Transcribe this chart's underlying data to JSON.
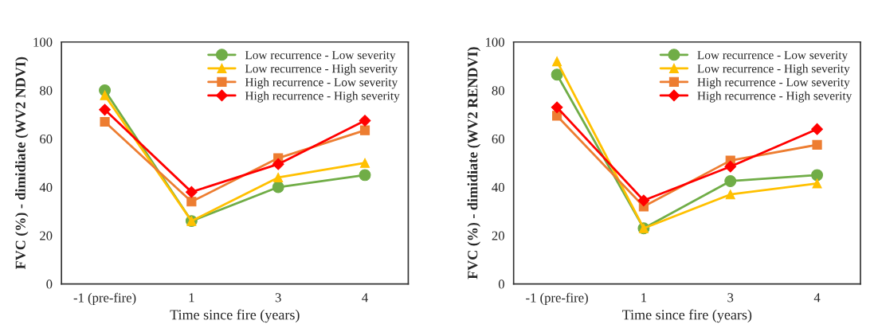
{
  "chart_data": [
    {
      "type": "line",
      "xlabel": "Time since fire (years)",
      "ylabel": "FVC (%) - dimidiate (WV2 NDVI)",
      "categories": [
        "-1 (pre-fire)",
        "1",
        "3",
        "4"
      ],
      "ylim": [
        0,
        100
      ],
      "yticks": [
        0,
        20,
        40,
        60,
        80,
        100
      ],
      "grid": false,
      "legend": "top right",
      "series": [
        {
          "name": "Low recurrence - Low severity",
          "color": "#70ad47",
          "marker": "circle",
          "values": [
            80,
            26,
            40,
            45
          ]
        },
        {
          "name": "Low recurrence - High severity",
          "color": "#ffc000",
          "marker": "triangle",
          "values": [
            78,
            26,
            44,
            50
          ]
        },
        {
          "name": "High recurrence - Low severity",
          "color": "#ed7d31",
          "marker": "square",
          "values": [
            67,
            34,
            52,
            63.5
          ]
        },
        {
          "name": "High recurrence - High severity",
          "color": "#ff0000",
          "marker": "diamond",
          "values": [
            72,
            38,
            49.5,
            67.5
          ]
        }
      ]
    },
    {
      "type": "line",
      "xlabel": "Time since fire (years)",
      "ylabel": "FVC (%) - dimidiate (WV2 RENDVI)",
      "categories": [
        "-1 (pre-fire)",
        "1",
        "3",
        "4"
      ],
      "ylim": [
        0,
        100
      ],
      "yticks": [
        0,
        20,
        40,
        60,
        80,
        100
      ],
      "grid": false,
      "legend": "top right",
      "series": [
        {
          "name": "Low recurrence - Low severity",
          "color": "#70ad47",
          "marker": "circle",
          "values": [
            86.5,
            23,
            42.5,
            45
          ]
        },
        {
          "name": "Low recurrence - High severity",
          "color": "#ffc000",
          "marker": "triangle",
          "values": [
            92,
            23,
            37,
            41.5
          ]
        },
        {
          "name": "High recurrence - Low severity",
          "color": "#ed7d31",
          "marker": "square",
          "values": [
            69.5,
            32,
            51,
            57.5
          ]
        },
        {
          "name": "High recurrence - High severity",
          "color": "#ff0000",
          "marker": "diamond",
          "values": [
            73,
            34.5,
            48.5,
            64
          ]
        }
      ]
    }
  ]
}
